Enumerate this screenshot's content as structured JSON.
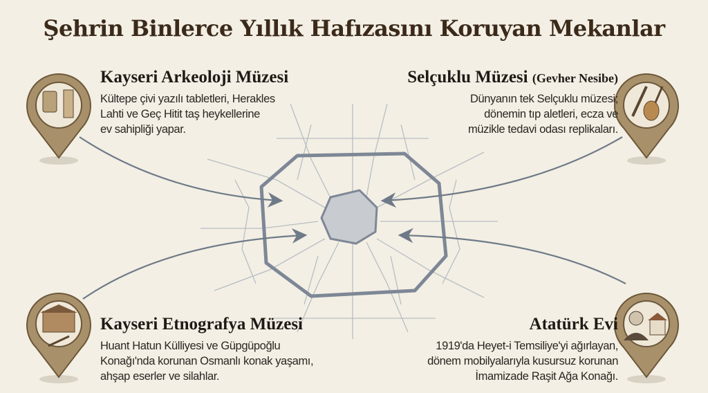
{
  "title": "Şehrin Binlerce Yıllık Hafızasını Koruyan Mekanlar",
  "colors": {
    "background": "#f3efe4",
    "pin": "#a8906a",
    "map_lines": "#8c98a8",
    "ring": "#7d8796"
  },
  "museums": [
    {
      "name": "Kayseri Arkeoloji Müzesi",
      "subtitle": "",
      "icon": "cuneiform-tablet-statue-icon",
      "lines": [
        "Kültepe çivi yazılı tabletleri, Herakles",
        "Lahti ve Geç Hitit taş heykellerine",
        "ev sahipliği yapar."
      ]
    },
    {
      "name": "Selçuklu Müzesi",
      "subtitle": "(Gevher Nesibe)",
      "icon": "medical-tool-lute-icon",
      "lines": [
        "Dünyanın tek Selçuklu müzesi;",
        "dönemin tıp aletleri, ecza ve",
        "müzikle tedavi odası replikaları."
      ]
    },
    {
      "name": "Kayseri Etnografya Müzesi",
      "subtitle": "",
      "icon": "ottoman-mansion-dagger-icon",
      "lines": [
        "Huant Hatun Külliyesi ve Güpgüpoğlu",
        "Konağı'nda korunan Osmanlı konak yaşamı,",
        "ahşap eserler ve silahlar."
      ]
    },
    {
      "name": "Atatürk Evi",
      "subtitle": "",
      "icon": "ataturk-portrait-house-icon",
      "lines": [
        "1919'da Heyet-i Temsiliye'yi ağırlayan,",
        "dönem mobilyalarıyla kusursuz korunan",
        "İmamizade Raşit Ağa Konağı."
      ]
    }
  ]
}
